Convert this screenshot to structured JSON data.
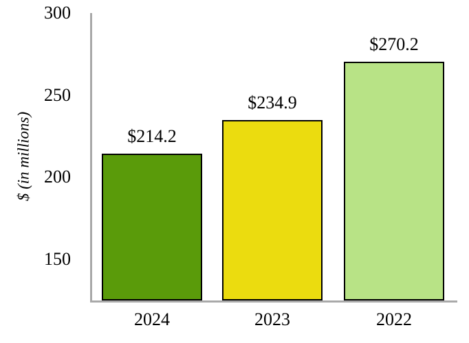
{
  "chart_data": {
    "type": "bar",
    "categories": [
      "2024",
      "2023",
      "2022"
    ],
    "values": [
      214.2,
      234.9,
      270.2
    ],
    "bar_labels": [
      "$214.2",
      "$234.9",
      "$270.2"
    ],
    "bar_colors": [
      "#5a9b0a",
      "#ebdc0f",
      "#b8e386"
    ],
    "bar_border_color": "#000000",
    "ylabel": "$ (in millions)",
    "ylim": [
      125,
      300
    ],
    "yticks": [
      150,
      200,
      250,
      300
    ],
    "grid": false,
    "legend_position": "none",
    "axis_color": "#a9a9a9",
    "text_color": "#000000",
    "background_color": "#ffffff"
  }
}
